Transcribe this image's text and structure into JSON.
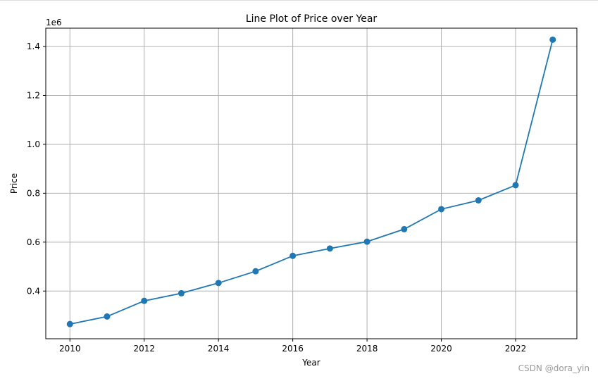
{
  "chart_data": {
    "type": "line",
    "title": "Line Plot of Price over Year",
    "xlabel": "Year",
    "ylabel": "Price",
    "y_offset_label": "1e6",
    "xlim": [
      2009.35,
      2023.65
    ],
    "ylim": [
      0.205,
      1.475
    ],
    "xticks": [
      2010,
      2012,
      2014,
      2016,
      2018,
      2020,
      2022
    ],
    "xtick_labels": [
      "2010",
      "2012",
      "2014",
      "2016",
      "2018",
      "2020",
      "2022"
    ],
    "yticks": [
      0.4,
      0.6,
      0.8,
      1.0,
      1.2,
      1.4
    ],
    "ytick_labels": [
      "0.4",
      "0.6",
      "0.8",
      "1.0",
      "1.2",
      "1.4"
    ],
    "grid": true,
    "series": [
      {
        "name": "Price",
        "marker": "o",
        "color": "#1f77b4",
        "x": [
          2010,
          2011,
          2012,
          2013,
          2014,
          2015,
          2016,
          2017,
          2018,
          2019,
          2020,
          2021,
          2022,
          2023
        ],
        "values": [
          0.265,
          0.296,
          0.36,
          0.391,
          0.433,
          0.481,
          0.544,
          0.574,
          0.602,
          0.653,
          0.735,
          0.771,
          0.833,
          1.428
        ]
      }
    ]
  },
  "watermark": "CSDN @dora_yin",
  "colors": {
    "grid": "#b0b0b0",
    "axes": "#000000",
    "background": "#ffffff"
  }
}
